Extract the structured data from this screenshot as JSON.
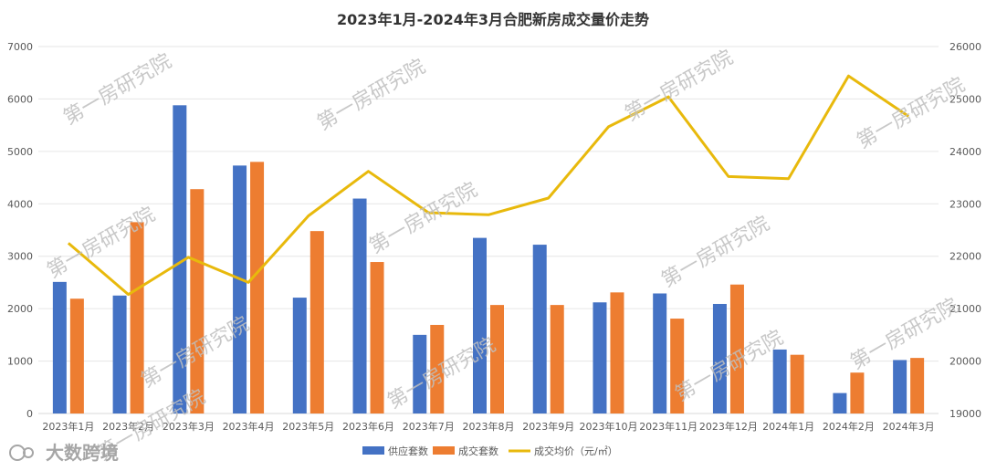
{
  "chart_data": {
    "type": "bar",
    "title": "2023年1月-2024年3月合肥新房成交量价走势",
    "categories": [
      "2023年1月",
      "2023年2月",
      "2023年3月",
      "2023年4月",
      "2023年5月",
      "2023年6月",
      "2023年7月",
      "2023年8月",
      "2023年9月",
      "2023年10月",
      "2023年11月",
      "2023年12月",
      "2024年1月",
      "2024年2月",
      "2024年3月"
    ],
    "series": [
      {
        "name": "供应套数",
        "kind": "bar",
        "axis": "left",
        "color": "#4472C4",
        "values": [
          2510,
          2250,
          5880,
          4730,
          2210,
          4100,
          1500,
          3350,
          3220,
          2120,
          2290,
          2090,
          1220,
          390,
          1020
        ]
      },
      {
        "name": "成交套数",
        "kind": "bar",
        "axis": "left",
        "color": "#ED7D31",
        "values": [
          2190,
          3650,
          4280,
          4800,
          3480,
          2890,
          1690,
          2070,
          2070,
          2310,
          1810,
          2460,
          1120,
          780,
          1060
        ]
      },
      {
        "name": "成交均价（元/㎡）",
        "kind": "line",
        "axis": "right",
        "color": "#E8B90C",
        "values": [
          22250,
          21270,
          21980,
          21500,
          22770,
          23620,
          22830,
          22790,
          23110,
          24470,
          25040,
          23520,
          23480,
          25440,
          24670
        ]
      }
    ],
    "y_left": {
      "min": 0,
      "max": 7000,
      "step": 1000
    },
    "y_right": {
      "min": 19000,
      "max": 26000,
      "step": 1000
    },
    "grid": true,
    "legend_position": "bottom"
  },
  "watermark_text": "第一房研究院",
  "logo_text": "大数跨境"
}
